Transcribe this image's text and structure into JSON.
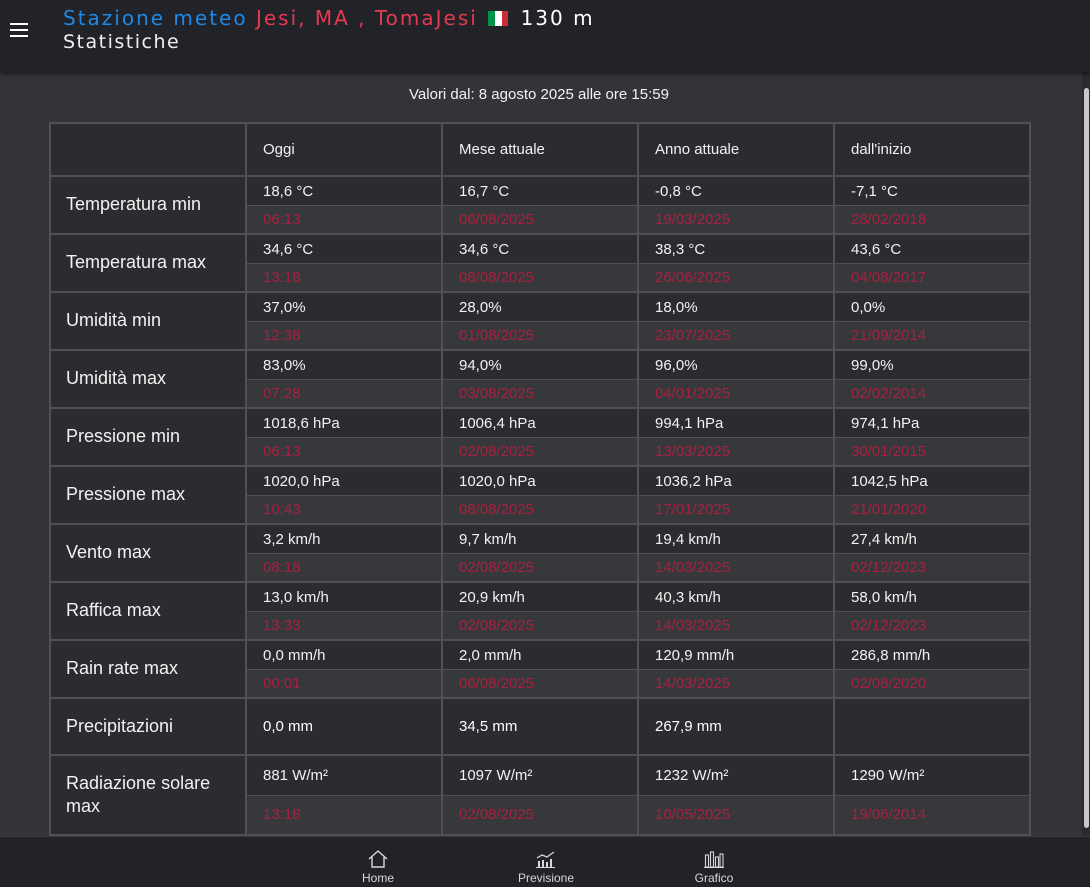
{
  "header": {
    "prefix": "Stazione meteo",
    "location": "Jesi, MA , TomaJesi",
    "altitude": "130 m",
    "subtitle": "Statistiche"
  },
  "since_text": "Valori dal: 8 agosto 2025 alle ore 15:59",
  "columns": [
    "",
    "Oggi",
    "Mese attuale",
    "Anno attuale",
    "dall'inizio"
  ],
  "rows": [
    {
      "label": "Temperatura min",
      "cells": [
        {
          "value": "18,6 °C",
          "when": "06:13"
        },
        {
          "value": "16,7 °C",
          "when": "06/08/2025"
        },
        {
          "value": "-0,8 °C",
          "when": "19/03/2025"
        },
        {
          "value": "-7,1 °C",
          "when": "28/02/2018"
        }
      ]
    },
    {
      "label": "Temperatura max",
      "cells": [
        {
          "value": "34,6 °C",
          "when": "13:18"
        },
        {
          "value": "34,6 °C",
          "when": "08/08/2025"
        },
        {
          "value": "38,3 °C",
          "when": "26/06/2025"
        },
        {
          "value": "43,6 °C",
          "when": "04/08/2017"
        }
      ]
    },
    {
      "label": "Umidità min",
      "cells": [
        {
          "value": "37,0%",
          "when": "12:38"
        },
        {
          "value": "28,0%",
          "when": "01/08/2025"
        },
        {
          "value": "18,0%",
          "when": "23/07/2025"
        },
        {
          "value": "0,0%",
          "when": "21/09/2014"
        }
      ]
    },
    {
      "label": "Umidità max",
      "cells": [
        {
          "value": "83,0%",
          "when": "07:28"
        },
        {
          "value": "94,0%",
          "when": "03/08/2025"
        },
        {
          "value": "96,0%",
          "when": "04/01/2025"
        },
        {
          "value": "99,0%",
          "when": "02/02/2014"
        }
      ]
    },
    {
      "label": "Pressione min",
      "cells": [
        {
          "value": "1018,6 hPa",
          "when": "06:13"
        },
        {
          "value": "1006,4 hPa",
          "when": "02/08/2025"
        },
        {
          "value": "994,1 hPa",
          "when": "13/03/2025"
        },
        {
          "value": "974,1 hPa",
          "when": "30/01/2015"
        }
      ]
    },
    {
      "label": "Pressione max",
      "cells": [
        {
          "value": "1020,0 hPa",
          "when": "10:43"
        },
        {
          "value": "1020,0 hPa",
          "when": "08/08/2025"
        },
        {
          "value": "1036,2 hPa",
          "when": "17/01/2025"
        },
        {
          "value": "1042,5 hPa",
          "when": "21/01/2020"
        }
      ]
    },
    {
      "label": "Vento max",
      "cells": [
        {
          "value": "3,2 km/h",
          "when": "08:18"
        },
        {
          "value": "9,7 km/h",
          "when": "02/08/2025"
        },
        {
          "value": "19,4 km/h",
          "when": "14/03/2025"
        },
        {
          "value": "27,4 km/h",
          "when": "02/12/2023"
        }
      ]
    },
    {
      "label": "Raffica max",
      "cells": [
        {
          "value": "13,0 km/h",
          "when": "13:33"
        },
        {
          "value": "20,9 km/h",
          "when": "02/08/2025"
        },
        {
          "value": "40,3 km/h",
          "when": "14/03/2025"
        },
        {
          "value": "58,0 km/h",
          "when": "02/12/2023"
        }
      ]
    },
    {
      "label": "Rain rate max",
      "cells": [
        {
          "value": "0,0 mm/h",
          "when": "00:01"
        },
        {
          "value": "2,0 mm/h",
          "when": "06/08/2025"
        },
        {
          "value": "120,9 mm/h",
          "when": "14/03/2025"
        },
        {
          "value": "286,8 mm/h",
          "when": "02/08/2020"
        }
      ]
    },
    {
      "label": "Precipitazioni",
      "plain": [
        "0,0 mm",
        "34,5 mm",
        "267,9 mm",
        ""
      ]
    },
    {
      "label": "Radiazione solare max",
      "cells": [
        {
          "value": "881 W/m²",
          "when": "13:18"
        },
        {
          "value": "1097 W/m²",
          "when": "02/08/2025"
        },
        {
          "value": "1232 W/m²",
          "when": "10/05/2025"
        },
        {
          "value": "1290 W/m²",
          "when": "19/06/2014"
        }
      ]
    }
  ],
  "nav": [
    {
      "label": "Home",
      "icon": "home-icon"
    },
    {
      "label": "Previsione",
      "icon": "forecast-chart-icon"
    },
    {
      "label": "Grafico",
      "icon": "bar-chart-icon"
    }
  ],
  "colors": {
    "accent_blue": "#1e88e5",
    "accent_red": "#e53950",
    "date_red": "#a8203f",
    "background": "#333438",
    "bar": "#212328"
  }
}
